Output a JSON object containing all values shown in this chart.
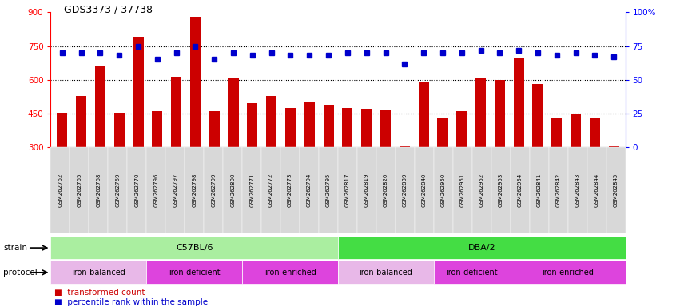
{
  "title": "GDS3373 / 37738",
  "samples": [
    "GSM262762",
    "GSM262765",
    "GSM262768",
    "GSM262769",
    "GSM262770",
    "GSM262796",
    "GSM262797",
    "GSM262798",
    "GSM262799",
    "GSM262800",
    "GSM262771",
    "GSM262772",
    "GSM262773",
    "GSM262794",
    "GSM262795",
    "GSM262817",
    "GSM262819",
    "GSM262820",
    "GSM262839",
    "GSM262840",
    "GSM262950",
    "GSM262951",
    "GSM262952",
    "GSM262953",
    "GSM262954",
    "GSM262841",
    "GSM262842",
    "GSM262843",
    "GSM262844",
    "GSM262845"
  ],
  "transformed_count": [
    455,
    530,
    660,
    455,
    790,
    460,
    615,
    880,
    460,
    605,
    495,
    530,
    475,
    505,
    490,
    475,
    470,
    465,
    310,
    590,
    430,
    460,
    610,
    600,
    700,
    580,
    430,
    450,
    430,
    305
  ],
  "percentile_rank": [
    70,
    70,
    70,
    68,
    75,
    65,
    70,
    75,
    65,
    70,
    68,
    70,
    68,
    68,
    68,
    70,
    70,
    70,
    62,
    70,
    70,
    70,
    72,
    70,
    72,
    70,
    68,
    70,
    68,
    67
  ],
  "ylim_left": [
    300,
    900
  ],
  "ylim_right": [
    0,
    100
  ],
  "yticks_left": [
    300,
    450,
    600,
    750,
    900
  ],
  "yticks_right": [
    0,
    25,
    50,
    75,
    100
  ],
  "ytick_labels_right": [
    "0",
    "25",
    "50",
    "75",
    "100%"
  ],
  "bar_color": "#cc0000",
  "dot_color": "#0000cc",
  "strain_groups": [
    {
      "label": "C57BL/6",
      "start": 0,
      "end": 14,
      "color": "#aaeea0"
    },
    {
      "label": "DBA/2",
      "start": 15,
      "end": 29,
      "color": "#44dd44"
    }
  ],
  "protocol_groups": [
    {
      "label": "iron-balanced",
      "start": 0,
      "end": 4,
      "color": "#e8b8e8",
      "text_color": "#000000"
    },
    {
      "label": "iron-deficient",
      "start": 5,
      "end": 9,
      "color": "#dd44dd",
      "text_color": "#000000"
    },
    {
      "label": "iron-enriched",
      "start": 10,
      "end": 14,
      "color": "#dd44dd",
      "text_color": "#000000"
    },
    {
      "label": "iron-balanced",
      "start": 15,
      "end": 19,
      "color": "#e8b8e8",
      "text_color": "#000000"
    },
    {
      "label": "iron-deficient",
      "start": 20,
      "end": 23,
      "color": "#dd44dd",
      "text_color": "#000000"
    },
    {
      "label": "iron-enriched",
      "start": 24,
      "end": 29,
      "color": "#dd44dd",
      "text_color": "#000000"
    }
  ],
  "hlines": [
    450,
    600,
    750
  ],
  "bg_color": "#ffffff",
  "tick_bg_color": "#d8d8d8"
}
